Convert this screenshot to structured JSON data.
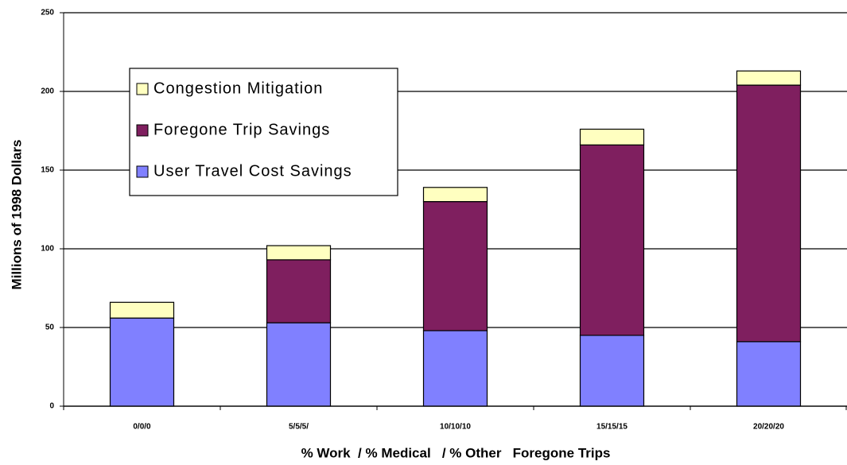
{
  "chart_data": {
    "type": "stacked_bar",
    "categories": [
      "0/0/0",
      "5/5/5/",
      "10/10/10",
      "15/15/15",
      "20/20/20"
    ],
    "series": [
      {
        "name": "User Travel Cost Savings",
        "color": "#8080ff",
        "values": [
          56,
          53,
          48,
          45,
          41
        ]
      },
      {
        "name": "Foregone Trip  Savings",
        "color": "#7f1f5f",
        "values": [
          0,
          40,
          82,
          121,
          163
        ]
      },
      {
        "name": "Congestion Mitigation",
        "color": "#ffffc0",
        "values": [
          10,
          9,
          9,
          10,
          9
        ]
      }
    ],
    "y_label": "Millions of 1998 Dollars",
    "x_label": "% Work  / % Medical   / % Other   Foregone Trips",
    "ylim": [
      0,
      250
    ],
    "yticks": [
      0,
      50,
      100,
      150,
      200,
      250
    ],
    "grid": true,
    "legend": "upper left"
  }
}
